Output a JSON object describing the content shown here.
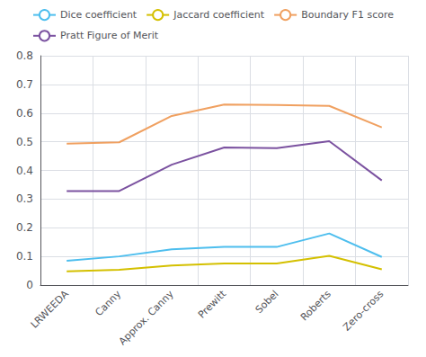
{
  "chart_data": {
    "type": "line",
    "categories": [
      "LRWEEDA",
      "Canny",
      "Approx. Canny",
      "Prewitt",
      "Sobel",
      "Roberts",
      "Zero-cross"
    ],
    "series": [
      {
        "name": "Dice coefficient",
        "color": "#4dbeee",
        "values": [
          0.085,
          0.1,
          0.125,
          0.133,
          0.133,
          0.18,
          0.098
        ]
      },
      {
        "name": "Jaccard coefficient",
        "color": "#d4c000",
        "values": [
          0.048,
          0.053,
          0.068,
          0.075,
          0.075,
          0.102,
          0.055
        ]
      },
      {
        "name": "Boundary F1 score",
        "color": "#f0a060",
        "values": [
          0.493,
          0.498,
          0.59,
          0.63,
          0.628,
          0.625,
          0.55
        ]
      },
      {
        "name": "Pratt Figure of Merit",
        "color": "#7b52a0",
        "values": [
          0.328,
          0.328,
          0.42,
          0.48,
          0.478,
          0.502,
          0.365
        ]
      }
    ],
    "ylim": [
      0,
      0.8
    ],
    "yticks": [
      0,
      0.1,
      0.2,
      0.3,
      0.4,
      0.5,
      0.6,
      0.7,
      0.8
    ],
    "grid": true,
    "legend": "upper center"
  }
}
